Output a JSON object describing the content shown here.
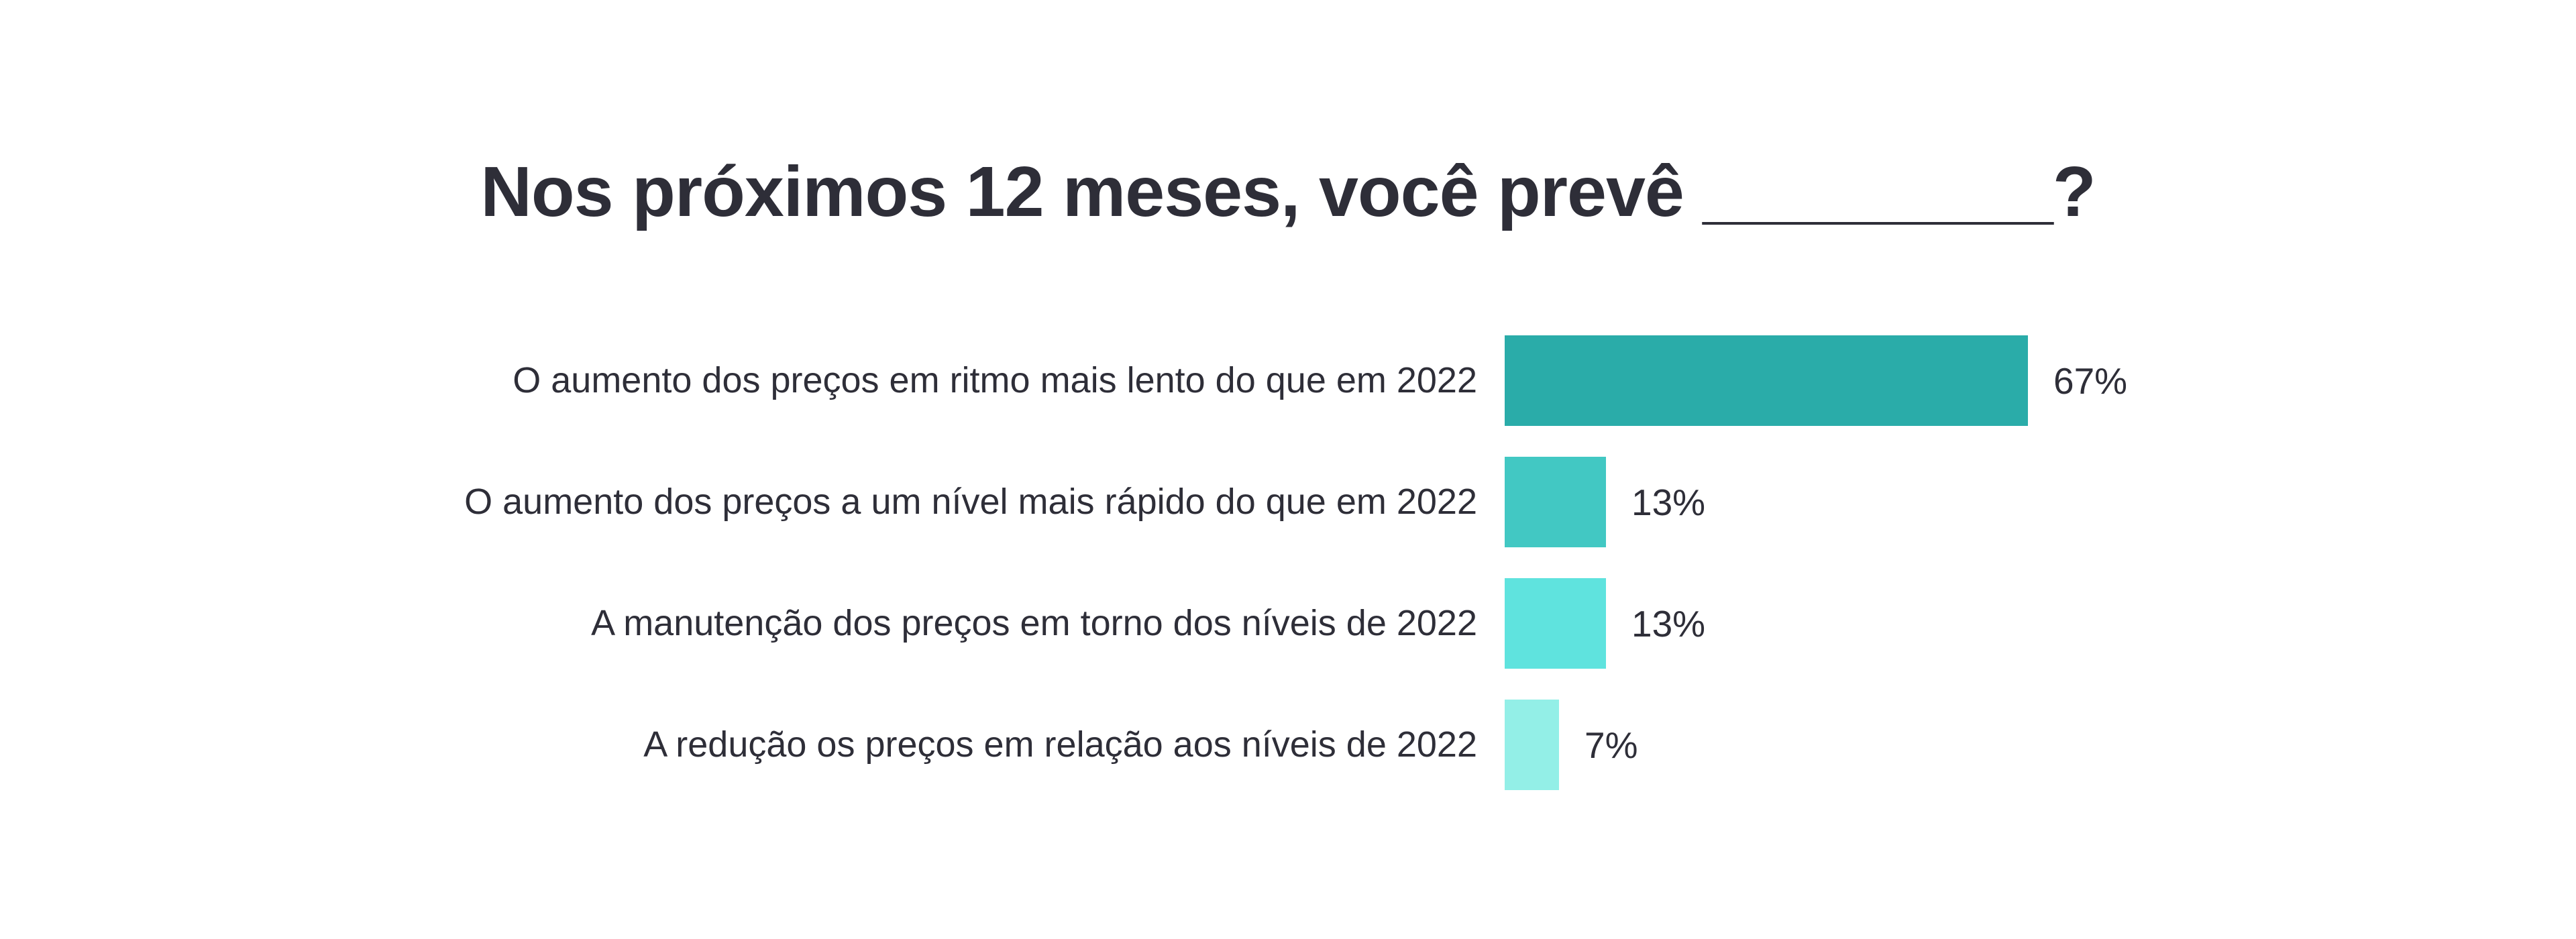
{
  "page": {
    "background_color": "#ffffff",
    "text_color": "#2e2e38"
  },
  "title": {
    "text": "Nos próximos 12 meses, você prevê _________?"
  },
  "chart_data": {
    "type": "bar",
    "orientation": "horizontal",
    "title": "Nos próximos 12 meses, você prevê _________?",
    "categories": [
      "O aumento dos preços em ritmo mais lento do que em 2022",
      "O aumento dos preços a um nível mais rápido do que em 2022",
      "A manutenção dos preços em torno dos níveis de 2022",
      "A redução os preços em relação aos níveis de 2022"
    ],
    "values": [
      67,
      13,
      13,
      7
    ],
    "value_labels": [
      "67%",
      "13%",
      "13%",
      "7%"
    ],
    "bar_colors": [
      "#2aaca9",
      "#42c8c3",
      "#5fe3de",
      "#93efe7"
    ],
    "unit": "%",
    "xlim": [
      0,
      100
    ],
    "grid": false,
    "legend": false,
    "bars_sorted_descending": true
  }
}
